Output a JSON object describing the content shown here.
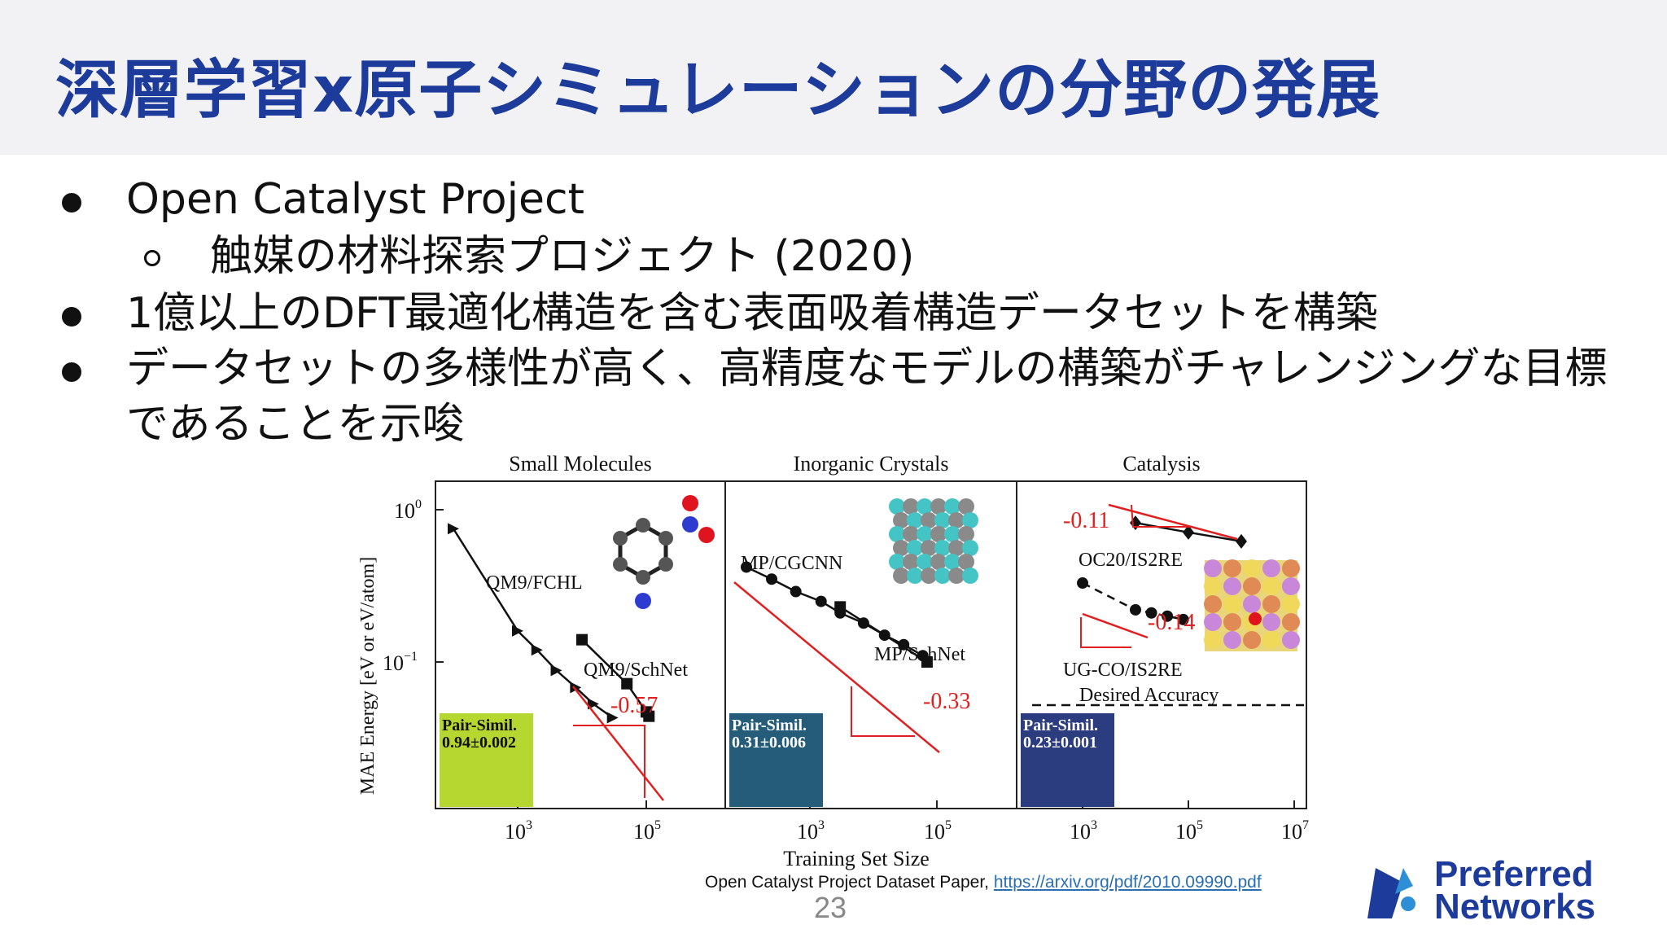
{
  "slide": {
    "title": "深層学習x原子シミュレーションの分野の発展",
    "bullets": [
      "Open Catalyst Project",
      "触媒の材料探索プロジェクト (2020)",
      "1億以上のDFT最適化構造を含む表面吸着構造データセットを構築",
      "データセットの多様性が高く、高精度なモデルの構築がチャレンジングな目標",
      "であることを示唆"
    ],
    "caption_text": "Open Catalyst Project Dataset Paper, ",
    "caption_link": "https://arxiv.org/pdf/2010.09990.pdf",
    "page_number": "23",
    "logo_line1": "Preferred",
    "logo_line2": "Networks"
  },
  "chart_data": {
    "type": "line",
    "scale": "log-log",
    "ylabel": "MAE Energy [eV or eV/atom]",
    "xlabel": "Training Set Size",
    "y_ticks": [
      "10^0",
      "10^-1"
    ],
    "panels": [
      {
        "title": "Small Molecules",
        "x_ticks": [
          "10^3",
          "10^5"
        ],
        "series": [
          {
            "name": "QM9/FCHL",
            "marker": "triangle",
            "x": [
              100,
              1000,
              2000,
              4000,
              8000,
              15000,
              30000
            ],
            "y": [
              0.75,
              0.16,
              0.12,
              0.088,
              0.068,
              0.053,
              0.043
            ]
          },
          {
            "name": "QM9/SchNet",
            "marker": "square",
            "x": [
              10000,
              50000,
              100000,
              110000
            ],
            "y": [
              0.14,
              0.072,
              0.047,
              0.044
            ]
          }
        ],
        "slopes": [
          {
            "label": "-0.57"
          }
        ],
        "inset": {
          "label": "Pair-Simil.",
          "value": "0.94±0.002",
          "color": "#b6d630"
        }
      },
      {
        "title": "Inorganic Crystals",
        "x_ticks": [
          "10^3",
          "10^5"
        ],
        "series": [
          {
            "name": "MP/CGCNN",
            "marker": "circle",
            "x": [
              100,
              250,
              600,
              1500,
              3000,
              7000,
              15000,
              30000,
              60000
            ],
            "y": [
              0.42,
              0.35,
              0.29,
              0.25,
              0.21,
              0.18,
              0.15,
              0.13,
              0.11
            ]
          },
          {
            "name": "MP/SchNet",
            "marker": "square",
            "x": [
              3000,
              70000
            ],
            "y": [
              0.23,
              0.1
            ]
          }
        ],
        "slopes": [
          {
            "label": "-0.33"
          }
        ],
        "inset": {
          "label": "Pair-Simil.",
          "value": "0.31±0.006",
          "color": "#255c7a"
        }
      },
      {
        "title": "Catalysis",
        "x_ticks": [
          "10^3",
          "10^5",
          "10^7"
        ],
        "series": [
          {
            "name": "OC20/IS2RE",
            "marker": "diamond",
            "x": [
              10000,
              100000,
              1000000
            ],
            "y": [
              0.82,
              0.71,
              0.62
            ]
          },
          {
            "name": "UG-CO/IS2RE",
            "marker": "circle",
            "x": [
              1000,
              10000,
              20000,
              40000,
              80000
            ],
            "y": [
              0.33,
              0.22,
              0.21,
              0.2,
              0.19
            ]
          }
        ],
        "slopes": [
          {
            "label": "-0.11"
          },
          {
            "label": "-0.14"
          }
        ],
        "reference": {
          "label": "Desired Accuracy"
        },
        "inset": {
          "label": "Pair-Simil.",
          "value": "0.23±0.001",
          "color": "#2b3c7f"
        }
      }
    ]
  }
}
